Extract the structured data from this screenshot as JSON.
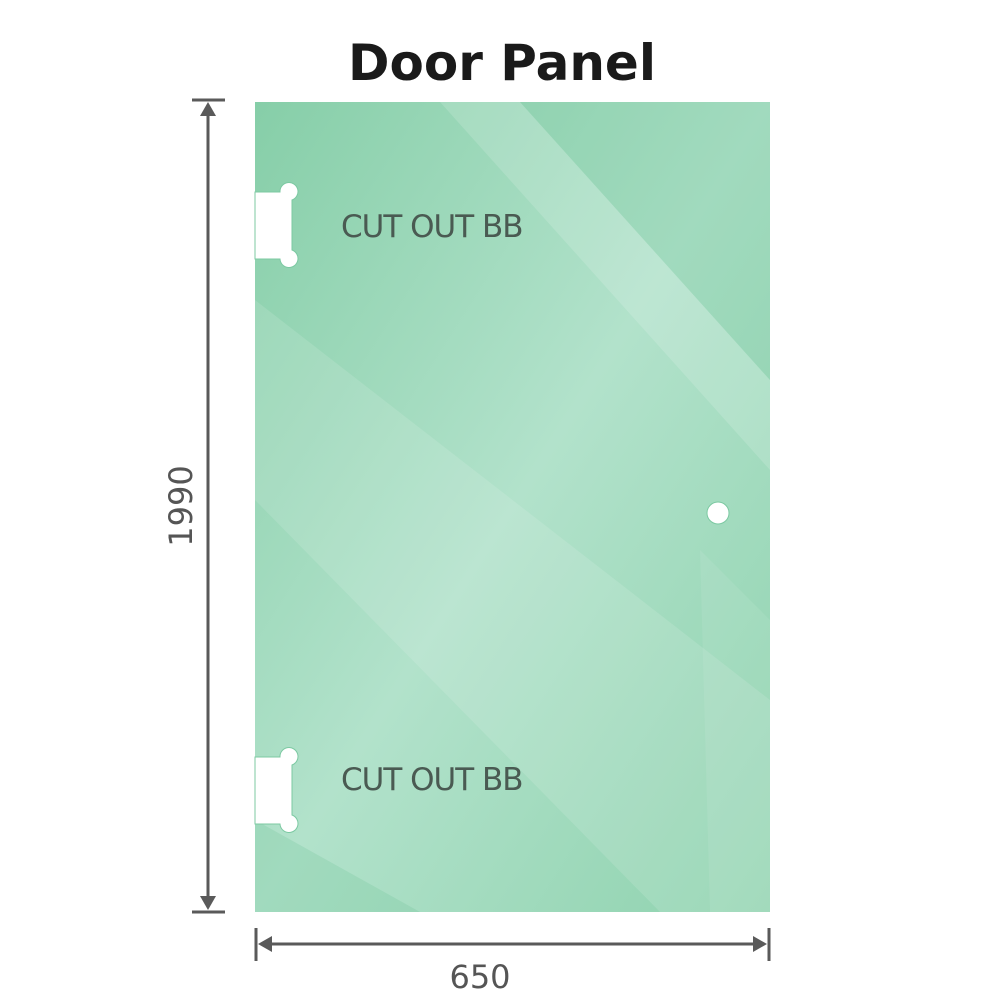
{
  "title": "Door Panel",
  "cutouts": [
    {
      "label": "CUT OUT BB"
    },
    {
      "label": "CUT OUT BB"
    }
  ],
  "dimensions": {
    "height": "1990",
    "width": "650"
  },
  "colors": {
    "glass": "#8fd3b0",
    "glass_dark": "#7fcaa3",
    "glass_light": "#b8e4cf",
    "dimension_line": "#5a5a5a",
    "label_text": "#4a5a52"
  }
}
